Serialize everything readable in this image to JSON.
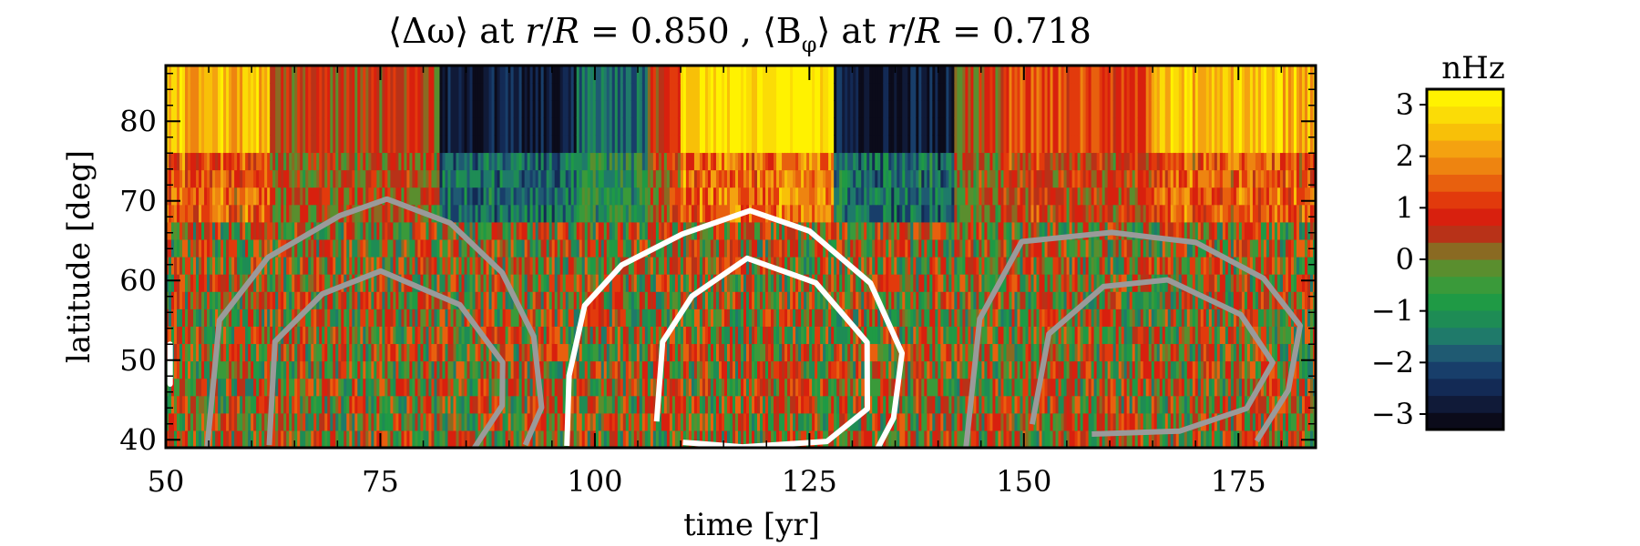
{
  "chart_data": {
    "type": "heatmap",
    "title": {
      "part1": "⟨Δω⟩ at ",
      "r": "r",
      "slash": "/",
      "R": "R",
      "part2": " = 0.850 , ⟨B",
      "phi": "φ",
      "part3": "⟩ at ",
      "r2": "r",
      "slash2": "/",
      "R2": "R",
      "part4": " = 0.718"
    },
    "xlabel": "time [yr]",
    "ylabel": "latitude [deg]",
    "xlim": [
      50,
      184
    ],
    "ylim": [
      39,
      87
    ],
    "xticks": [
      50,
      75,
      100,
      125,
      150,
      175
    ],
    "yticks": [
      40,
      50,
      60,
      70,
      80
    ],
    "colorbar": {
      "label": "nHz",
      "range": [
        -3.3,
        3.3
      ],
      "ticks": [
        3,
        2,
        1,
        0,
        -1,
        -2,
        -3
      ],
      "tick_labels": [
        "3",
        "2",
        "1",
        "0",
        "−1",
        "−2",
        "−3"
      ],
      "colors": [
        "#0b0b1a",
        "#101a38",
        "#132a55",
        "#183e6a",
        "#1f5a72",
        "#1f7a6a",
        "#1e8c55",
        "#1f9a45",
        "#3a9a3a",
        "#5a8e2e",
        "#8a6a22",
        "#b83218",
        "#d8200e",
        "#e23a0c",
        "#e8600e",
        "#ee8410",
        "#f4a210",
        "#f8c008",
        "#fbdc06",
        "#fff200"
      ]
    },
    "high_latitude_band": {
      "description_free_data": true,
      "segments": [
        {
          "t": [
            50,
            62
          ],
          "value": 2.5
        },
        {
          "t": [
            62,
            82
          ],
          "value": 0.6
        },
        {
          "t": [
            82,
            98
          ],
          "value": -2.8
        },
        {
          "t": [
            98,
            106
          ],
          "value": -1.5
        },
        {
          "t": [
            106,
            110
          ],
          "value": 0.8
        },
        {
          "t": [
            110,
            128
          ],
          "value": 3.0
        },
        {
          "t": [
            128,
            142
          ],
          "value": -2.8
        },
        {
          "t": [
            142,
            148
          ],
          "value": 0.5
        },
        {
          "t": [
            148,
            165
          ],
          "value": 1.3
        },
        {
          "t": [
            165,
            184
          ],
          "value": 2.4
        }
      ]
    },
    "contours": [
      {
        "color": "#9a9a9a",
        "name": "",
        "outer": [
          [
            55,
            39
          ],
          [
            56,
            55
          ],
          [
            62,
            63
          ],
          [
            70,
            68
          ],
          [
            76,
            70
          ],
          [
            83,
            67
          ],
          [
            89,
            61
          ],
          [
            93,
            53
          ],
          [
            94,
            44
          ],
          [
            92,
            39
          ]
        ],
        "inner": [
          [
            62,
            39
          ],
          [
            63,
            52
          ],
          [
            68,
            58
          ],
          [
            75,
            61
          ],
          [
            84,
            57
          ],
          [
            89,
            50
          ],
          [
            89,
            44
          ],
          [
            86,
            39
          ]
        ]
      },
      {
        "color": "#ffffff",
        "name": "",
        "outer": [
          [
            97,
            39
          ],
          [
            97,
            48
          ],
          [
            99,
            57
          ],
          [
            103,
            62
          ],
          [
            110,
            66
          ],
          [
            118,
            69
          ],
          [
            125,
            66
          ],
          [
            132,
            60
          ],
          [
            136,
            51
          ],
          [
            135,
            43
          ],
          [
            133,
            39
          ]
        ],
        "inner": [
          [
            107,
            42
          ],
          [
            108,
            52
          ],
          [
            111,
            58
          ],
          [
            118,
            63
          ],
          [
            126,
            60
          ],
          [
            132,
            52
          ],
          [
            132,
            44
          ],
          [
            127,
            40
          ],
          [
            117,
            39
          ],
          [
            110,
            40
          ]
        ]
      },
      {
        "color": "#9a9a9a",
        "name": "",
        "outer": [
          [
            143,
            39
          ],
          [
            145,
            55
          ],
          [
            150,
            65
          ],
          [
            160,
            66
          ],
          [
            170,
            65
          ],
          [
            178,
            60
          ],
          [
            182,
            54
          ],
          [
            181,
            46
          ],
          [
            177,
            40
          ]
        ],
        "inner": [
          [
            151,
            42
          ],
          [
            153,
            53
          ],
          [
            159,
            59
          ],
          [
            167,
            60
          ],
          [
            175,
            56
          ],
          [
            179,
            50
          ],
          [
            176,
            44
          ],
          [
            168,
            41
          ],
          [
            158,
            41
          ]
        ]
      }
    ],
    "small_marker": {
      "t": 50.5,
      "lat": [
        47,
        52
      ],
      "color": "#ffffff"
    }
  }
}
